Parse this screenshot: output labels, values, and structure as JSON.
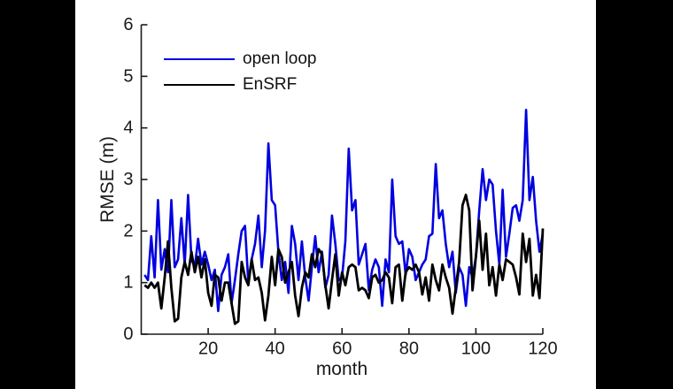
{
  "figure": {
    "background_color": "#ffffff",
    "letterbox_color": "#000000",
    "axis_color": "#1a1a1a"
  },
  "chart_data": {
    "type": "line",
    "title": "",
    "xlabel": "month",
    "ylabel": "RMSE (m)",
    "xlim": [
      0,
      120
    ],
    "ylim": [
      0,
      6
    ],
    "x_ticks": [
      20,
      40,
      60,
      80,
      100,
      120
    ],
    "y_ticks": [
      0,
      1,
      2,
      3,
      4,
      5,
      6
    ],
    "grid": false,
    "box": "off",
    "legend": {
      "position": "top-left-inside",
      "frame": false
    },
    "x": [
      1,
      2,
      3,
      4,
      5,
      6,
      7,
      8,
      9,
      10,
      11,
      12,
      13,
      14,
      15,
      16,
      17,
      18,
      19,
      20,
      21,
      22,
      23,
      24,
      25,
      26,
      27,
      28,
      29,
      30,
      31,
      32,
      33,
      34,
      35,
      36,
      37,
      38,
      39,
      40,
      41,
      42,
      43,
      44,
      45,
      46,
      47,
      48,
      49,
      50,
      51,
      52,
      53,
      54,
      55,
      56,
      57,
      58,
      59,
      60,
      61,
      62,
      63,
      64,
      65,
      66,
      67,
      68,
      69,
      70,
      71,
      72,
      73,
      74,
      75,
      76,
      77,
      78,
      79,
      80,
      81,
      82,
      83,
      84,
      85,
      86,
      87,
      88,
      89,
      90,
      91,
      92,
      93,
      94,
      95,
      96,
      97,
      98,
      99,
      100,
      101,
      102,
      103,
      104,
      105,
      106,
      107,
      108,
      109,
      110,
      111,
      112,
      113,
      114,
      115,
      116,
      117,
      118,
      119,
      120
    ],
    "series": [
      {
        "name": "open loop",
        "color": "#0000e0",
        "line_width": 2.6,
        "values": [
          1.15,
          1.05,
          1.9,
          1.1,
          2.6,
          1.25,
          1.65,
          1.2,
          2.6,
          1.3,
          1.45,
          2.25,
          1.35,
          2.7,
          1.45,
          1.3,
          1.85,
          1.35,
          1.6,
          1.35,
          1.05,
          1.25,
          0.45,
          1.15,
          1.3,
          1.55,
          0.6,
          1.05,
          1.55,
          2.0,
          2.1,
          1.0,
          1.45,
          1.75,
          2.3,
          1.3,
          2.0,
          3.7,
          2.6,
          2.5,
          1.6,
          1.05,
          1.4,
          0.8,
          2.1,
          1.75,
          1.05,
          1.8,
          1.1,
          0.65,
          1.3,
          1.9,
          1.2,
          1.6,
          0.9,
          1.15,
          2.3,
          1.75,
          1.05,
          1.1,
          1.8,
          3.6,
          2.4,
          2.6,
          1.35,
          1.55,
          1.75,
          0.85,
          1.25,
          1.45,
          1.3,
          0.55,
          1.45,
          1.2,
          3.0,
          1.9,
          1.75,
          1.8,
          1.15,
          1.65,
          1.5,
          1.05,
          1.2,
          1.35,
          1.45,
          1.9,
          1.95,
          3.3,
          2.25,
          2.4,
          1.75,
          1.3,
          1.6,
          0.8,
          1.3,
          1.15,
          0.55,
          1.3,
          1.1,
          1.5,
          2.4,
          3.2,
          2.6,
          3.0,
          2.9,
          2.0,
          1.35,
          2.8,
          1.5,
          1.95,
          2.45,
          2.5,
          2.2,
          2.6,
          4.35,
          2.6,
          3.05,
          2.2,
          1.6,
          1.95
        ]
      },
      {
        "name": "EnSRF",
        "color": "#000000",
        "line_width": 2.8,
        "values": [
          0.95,
          0.9,
          1.0,
          0.9,
          1.0,
          0.5,
          1.1,
          1.8,
          0.9,
          0.25,
          0.3,
          1.1,
          1.4,
          1.15,
          1.6,
          1.2,
          1.5,
          1.1,
          1.45,
          0.8,
          0.55,
          1.15,
          1.1,
          0.65,
          1.0,
          1.0,
          0.6,
          0.2,
          0.25,
          1.4,
          1.1,
          0.95,
          1.45,
          1.05,
          1.1,
          0.8,
          0.27,
          0.75,
          1.5,
          0.95,
          1.65,
          1.5,
          1.0,
          1.2,
          1.4,
          0.75,
          0.35,
          0.9,
          1.2,
          1.1,
          1.55,
          1.3,
          1.65,
          1.55,
          0.95,
          0.5,
          1.05,
          1.55,
          0.75,
          1.2,
          0.95,
          1.3,
          1.35,
          1.3,
          0.85,
          0.9,
          0.85,
          0.7,
          1.1,
          1.15,
          1.0,
          1.05,
          1.2,
          1.1,
          0.6,
          1.3,
          1.35,
          0.65,
          1.2,
          1.3,
          1.25,
          1.35,
          1.2,
          0.77,
          1.1,
          0.65,
          1.35,
          1.05,
          0.85,
          1.35,
          1.1,
          0.9,
          0.4,
          0.9,
          1.4,
          2.5,
          2.7,
          2.4,
          0.85,
          1.5,
          2.2,
          1.25,
          1.95,
          0.95,
          1.3,
          0.75,
          1.35,
          1.05,
          1.45,
          1.4,
          1.35,
          1.1,
          0.77,
          1.95,
          1.4,
          1.85,
          0.75,
          1.15,
          0.7,
          2.05
        ]
      }
    ]
  }
}
